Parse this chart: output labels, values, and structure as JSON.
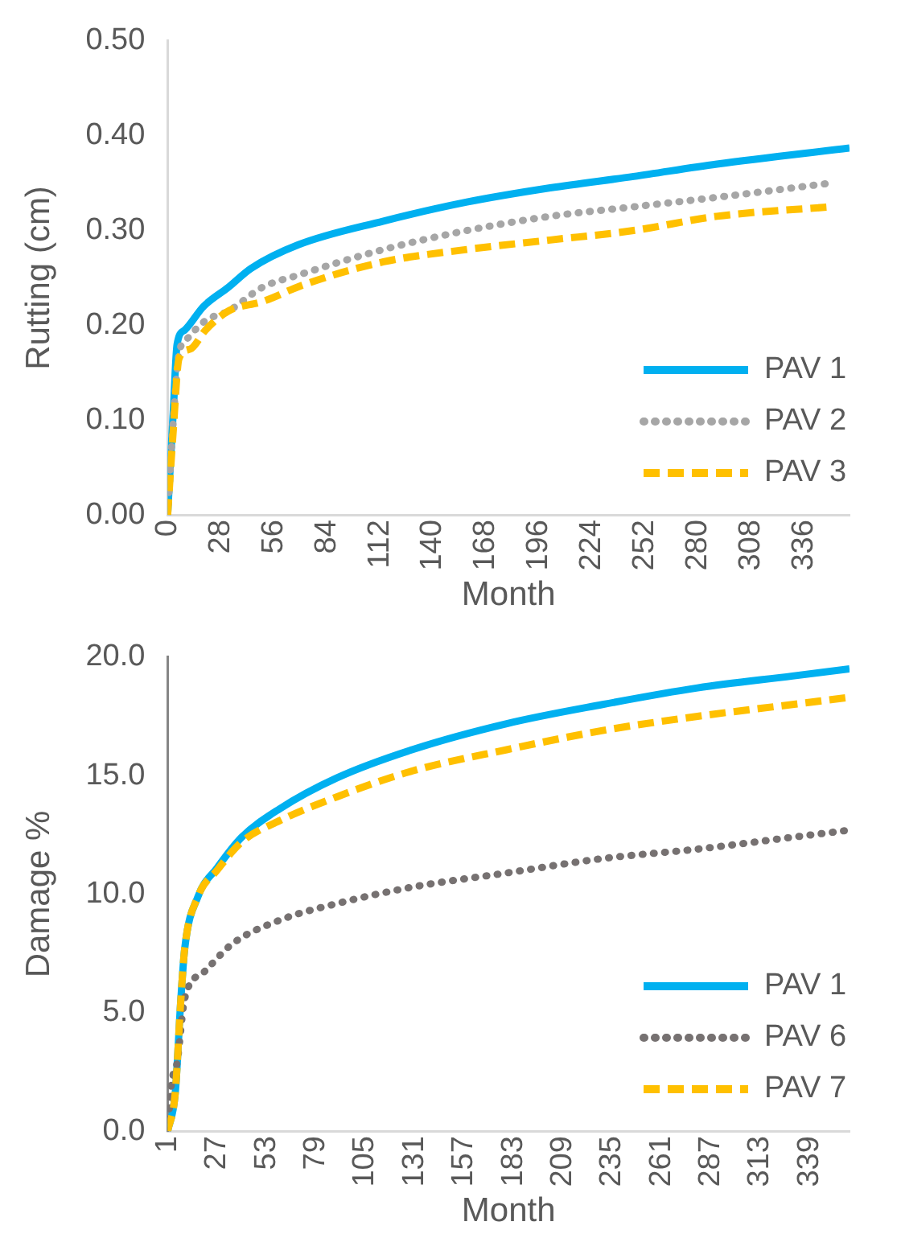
{
  "chart_data": [
    {
      "type": "line",
      "xlabel": "Month",
      "ylabel": "Rutting (cm)",
      "xlim": [
        0,
        360
      ],
      "xticks": [
        0,
        28,
        56,
        84,
        112,
        140,
        168,
        196,
        224,
        252,
        280,
        308,
        336
      ],
      "ylim": [
        0,
        0.5
      ],
      "yticks": [
        {
          "value": 0,
          "label": "0.00"
        },
        {
          "value": 0.1,
          "label": "0.10"
        },
        {
          "value": 0.2,
          "label": "0.20"
        },
        {
          "value": 0.3,
          "label": "0.30"
        },
        {
          "value": 0.4,
          "label": "0.40"
        },
        {
          "value": 0.5,
          "label": "0.50"
        }
      ],
      "grid": false,
      "legend": "bottom right",
      "marker": "none",
      "series": [
        {
          "name": "PAV 1",
          "color": "#00b0f0",
          "line_style": "solid",
          "x": [
            0,
            3,
            5,
            9,
            19,
            32,
            44,
            69,
            114,
            158,
            202,
            246,
            290,
            360
          ],
          "values": [
            0,
            0.11,
            0.18,
            0.195,
            0.22,
            0.24,
            0.26,
            0.285,
            0.31,
            0.33,
            0.345,
            0.357,
            0.37,
            0.387
          ]
        },
        {
          "name": "PAV 2",
          "color": "#a6a6a6",
          "line_style": "dotted",
          "x": [
            0,
            3,
            6,
            10,
            20,
            32,
            50,
            69,
            114,
            158,
            202,
            246,
            290,
            350
          ],
          "values": [
            0,
            0.1,
            0.17,
            0.185,
            0.205,
            0.215,
            0.24,
            0.253,
            0.28,
            0.3,
            0.315,
            0.325,
            0.335,
            0.35
          ]
        },
        {
          "name": "PAV 3",
          "color": "#ffc000",
          "line_style": "dashed",
          "x": [
            0,
            3,
            6,
            12,
            20,
            32,
            50,
            72,
            114,
            158,
            202,
            246,
            290,
            350
          ],
          "values": [
            0,
            0.09,
            0.165,
            0.175,
            0.195,
            0.215,
            0.225,
            0.243,
            0.267,
            0.28,
            0.29,
            0.3,
            0.315,
            0.325
          ]
        }
      ]
    },
    {
      "type": "line",
      "xlabel": "Month",
      "ylabel": "Damage %",
      "xlim": [
        1,
        360
      ],
      "xticks": [
        1,
        27,
        53,
        79,
        105,
        131,
        157,
        183,
        209,
        235,
        261,
        287,
        313,
        339
      ],
      "ylim": [
        0,
        20
      ],
      "yticks": [
        {
          "value": 0,
          "label": "0.0"
        },
        {
          "value": 5,
          "label": "5.0"
        },
        {
          "value": 10,
          "label": "10.0"
        },
        {
          "value": 15,
          "label": "15.0"
        },
        {
          "value": 20,
          "label": "20.0"
        }
      ],
      "grid": false,
      "legend": "bottom right",
      "marker": "none",
      "series": [
        {
          "name": "PAV 1",
          "color": "#00b0f0",
          "line_style": "solid",
          "x": [
            1,
            5,
            8,
            10,
            17,
            27,
            40,
            60,
            90,
            130,
            180,
            230,
            280,
            330,
            360
          ],
          "values": [
            0,
            1.6,
            5.6,
            7.7,
            9.9,
            11.1,
            12.4,
            13.6,
            14.9,
            16.1,
            17.2,
            18,
            18.7,
            19.2,
            19.5
          ]
        },
        {
          "name": "PAV 6",
          "color": "#767171",
          "line_style": "dotted",
          "x": [
            1,
            3,
            6,
            10,
            20,
            35,
            60,
            90,
            130,
            180,
            230,
            280,
            330,
            360
          ],
          "values": [
            0,
            2,
            2.9,
            5.6,
            6.7,
            7.9,
            8.9,
            9.6,
            10.3,
            10.9,
            11.5,
            11.9,
            12.4,
            12.7
          ]
        },
        {
          "name": "PAV 7",
          "color": "#ffc000",
          "line_style": "dashed",
          "x": [
            1,
            5,
            8,
            10,
            17,
            27,
            40,
            60,
            90,
            130,
            180,
            230,
            280,
            330,
            360
          ],
          "values": [
            0,
            1.6,
            5.6,
            7.7,
            9.9,
            11,
            12.2,
            13.1,
            14.1,
            15.2,
            16.1,
            16.9,
            17.5,
            18,
            18.3
          ]
        }
      ]
    }
  ]
}
